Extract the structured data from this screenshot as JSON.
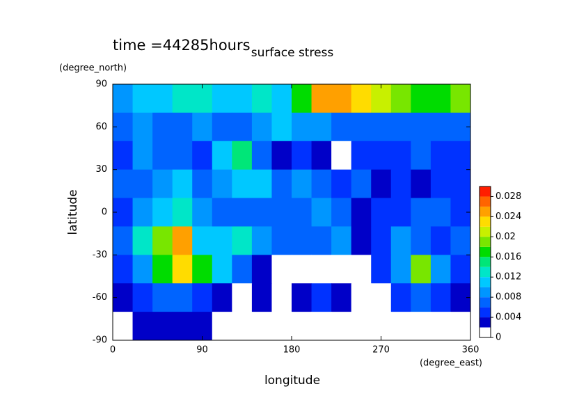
{
  "chart_data": {
    "type": "contour",
    "title": "surface stress",
    "subtitle": "time =44285hours",
    "x_label": "longitude",
    "y_label": "latitude",
    "x_unit": "(degree_east)",
    "y_unit": "(degree_north)",
    "xlim": [
      0,
      360
    ],
    "ylim": [
      -90,
      90
    ],
    "xticks": [
      0,
      90,
      180,
      270,
      360
    ],
    "yticks": [
      -90,
      -60,
      -30,
      0,
      30,
      60,
      90
    ],
    "x": [
      10,
      30,
      50,
      70,
      90,
      110,
      130,
      150,
      170,
      190,
      210,
      230,
      250,
      270,
      290,
      310,
      330,
      350
    ],
    "y": [
      80,
      60,
      40,
      20,
      0,
      -20,
      -40,
      -60,
      -80
    ],
    "z": [
      [
        0.008,
        0.01,
        0.01,
        0.012,
        0.012,
        0.01,
        0.01,
        0.012,
        0.01,
        0.016,
        0.024,
        0.024,
        0.022,
        0.02,
        0.018,
        0.016,
        0.016,
        0.018
      ],
      [
        0.006,
        0.008,
        0.006,
        0.006,
        0.008,
        0.006,
        0.006,
        0.008,
        0.01,
        0.008,
        0.008,
        0.006,
        0.006,
        0.006,
        0.006,
        0.006,
        0.006,
        0.006
      ],
      [
        0.004,
        0.008,
        0.006,
        0.006,
        0.004,
        0.01,
        0.014,
        0.006,
        0.002,
        0.004,
        0.002,
        0.001,
        0.004,
        0.004,
        0.004,
        0.006,
        0.004,
        0.004
      ],
      [
        0.006,
        0.006,
        0.008,
        0.01,
        0.006,
        0.008,
        0.01,
        0.01,
        0.006,
        0.008,
        0.006,
        0.004,
        0.006,
        0.002,
        0.004,
        0.002,
        0.004,
        0.004
      ],
      [
        0.004,
        0.008,
        0.01,
        0.012,
        0.008,
        0.006,
        0.006,
        0.006,
        0.006,
        0.006,
        0.008,
        0.006,
        0.002,
        0.004,
        0.004,
        0.006,
        0.006,
        0.004
      ],
      [
        0.006,
        0.012,
        0.018,
        0.024,
        0.01,
        0.01,
        0.012,
        0.008,
        0.006,
        0.006,
        0.006,
        0.008,
        0.002,
        0.004,
        0.008,
        0.006,
        0.004,
        0.006
      ],
      [
        0.004,
        0.008,
        0.016,
        0.022,
        0.016,
        0.01,
        0.006,
        0.002,
        0.001,
        0.001,
        0.001,
        0.001,
        0.001,
        0.004,
        0.008,
        0.018,
        0.008,
        0.004
      ],
      [
        0.002,
        0.004,
        0.006,
        0.006,
        0.004,
        0.002,
        0.001,
        0.002,
        0.001,
        0.002,
        0.004,
        0.002,
        0.001,
        0.001,
        0.004,
        0.006,
        0.004,
        0.002
      ],
      [
        0.001,
        0.002,
        0.002,
        0.002,
        0.002,
        0.001,
        0.001,
        0,
        0,
        0,
        0,
        0,
        0,
        0,
        0,
        0,
        0,
        0
      ]
    ],
    "levels": [
      0,
      0.002,
      0.004,
      0.006,
      0.008,
      0.01,
      0.012,
      0.014,
      0.016,
      0.018,
      0.02,
      0.022,
      0.024,
      0.026,
      0.028,
      0.03
    ],
    "colors": [
      "#ffffff",
      "#0000c8",
      "#0032ff",
      "#0064ff",
      "#0096ff",
      "#00c8ff",
      "#00e6c8",
      "#00e678",
      "#00dc00",
      "#78e600",
      "#c8f000",
      "#ffdc00",
      "#ffa000",
      "#ff6400",
      "#ff1e00"
    ],
    "cbticks": [
      0,
      0.004,
      0.008,
      0.012,
      0.016,
      0.02,
      0.024,
      0.028
    ]
  }
}
